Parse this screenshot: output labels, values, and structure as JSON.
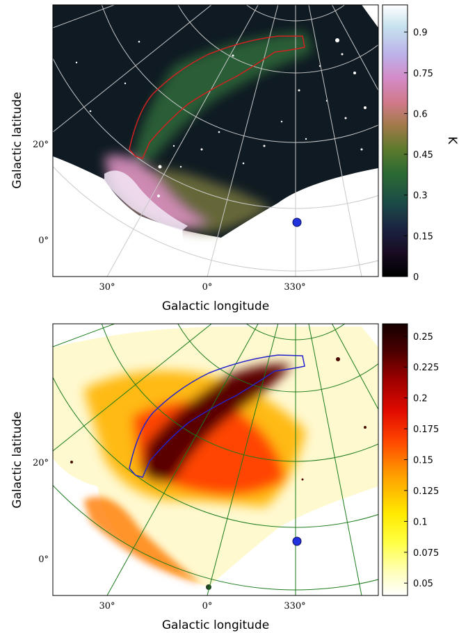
{
  "chart_data": [
    {
      "type": "heatmap",
      "panel": "top",
      "xlabel": "Galactic longitude",
      "ylabel": "Galactic latitude",
      "x_ticks": [
        "30°",
        "0°",
        "330°"
      ],
      "y_ticks": [
        "20°",
        "0°"
      ],
      "colorbar": {
        "label": "K",
        "colormap": "cubehelix",
        "ticks": [
          "0",
          "0.15",
          "0.3",
          "0.45",
          "0.6",
          "0.75",
          "0.9"
        ],
        "range": [
          0,
          1.0
        ]
      },
      "grid_color": "#c8c8c8",
      "contour_color": "#d42020",
      "marker": {
        "lon": 331,
        "lat": 4,
        "color": "#2233dd"
      },
      "grid": true
    },
    {
      "type": "heatmap",
      "panel": "bottom",
      "xlabel": "Galactic longitude",
      "ylabel": "Galactic latitude",
      "x_ticks": [
        "30°",
        "0°",
        "330°"
      ],
      "y_ticks": [
        "20°",
        "0°"
      ],
      "colorbar": {
        "label": "",
        "colormap": "afmhot_r",
        "ticks": [
          "0.05",
          "0.075",
          "0.1",
          "0.125",
          "0.15",
          "0.175",
          "0.2",
          "0.225",
          "0.25"
        ],
        "range": [
          0.04,
          0.26
        ]
      },
      "grid_color": "#1a7a1a",
      "contour_color": "#2222cc",
      "marker": {
        "lon": 331,
        "lat": 4,
        "color": "#2233dd"
      },
      "grid": true
    }
  ]
}
